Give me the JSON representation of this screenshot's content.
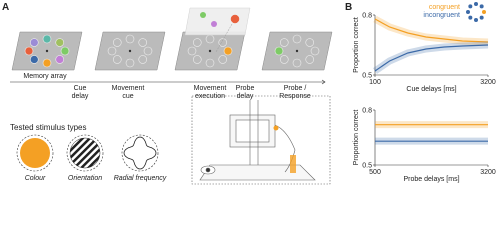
{
  "panel_a": {
    "label": "A",
    "stages": [
      [
        "Memory array"
      ],
      [
        "Cue",
        "delay"
      ],
      [
        "Movement",
        "cue"
      ],
      [
        "Movement",
        "execution"
      ],
      [
        "Probe",
        "delay"
      ],
      [
        "Probe /",
        "Response"
      ]
    ],
    "stimulus_title": "Tested stimulus types",
    "stimuli": [
      "Colour",
      "Orientation",
      "Radial frequency"
    ]
  },
  "panel_b": {
    "label": "B"
  },
  "chart_data": [
    {
      "type": "line",
      "x_label": "Cue delays [ms]",
      "y_label": "Proportion correct",
      "x": [
        100,
        500,
        1000,
        1500,
        2000,
        2500,
        3200
      ],
      "series": [
        {
          "name": "congruent",
          "color": "#f4a024",
          "values": [
            0.78,
            0.74,
            0.71,
            0.69,
            0.68,
            0.67,
            0.665
          ]
        },
        {
          "name": "incongruent",
          "color": "#3c6aa8",
          "values": [
            0.52,
            0.57,
            0.61,
            0.63,
            0.64,
            0.645,
            0.65
          ]
        }
      ],
      "xlim": [
        100,
        3200
      ],
      "xticks": [
        100,
        3200
      ],
      "ylim": [
        0.5,
        0.8
      ],
      "yticks": [
        0.5,
        0.8
      ],
      "legend": "upper right"
    },
    {
      "type": "line",
      "x_label": "Probe delays [ms]",
      "y_label": "Proportion correct",
      "x": [
        500,
        3200
      ],
      "series": [
        {
          "color": "#f4a024",
          "values": [
            0.72,
            0.72
          ]
        },
        {
          "color": "#3c6aa8",
          "values": [
            0.63,
            0.63
          ]
        }
      ],
      "xlim": [
        500,
        3200
      ],
      "xticks": [
        500,
        3200
      ],
      "ylim": [
        0.5,
        0.8
      ],
      "yticks": [
        0.5,
        0.8
      ]
    }
  ]
}
